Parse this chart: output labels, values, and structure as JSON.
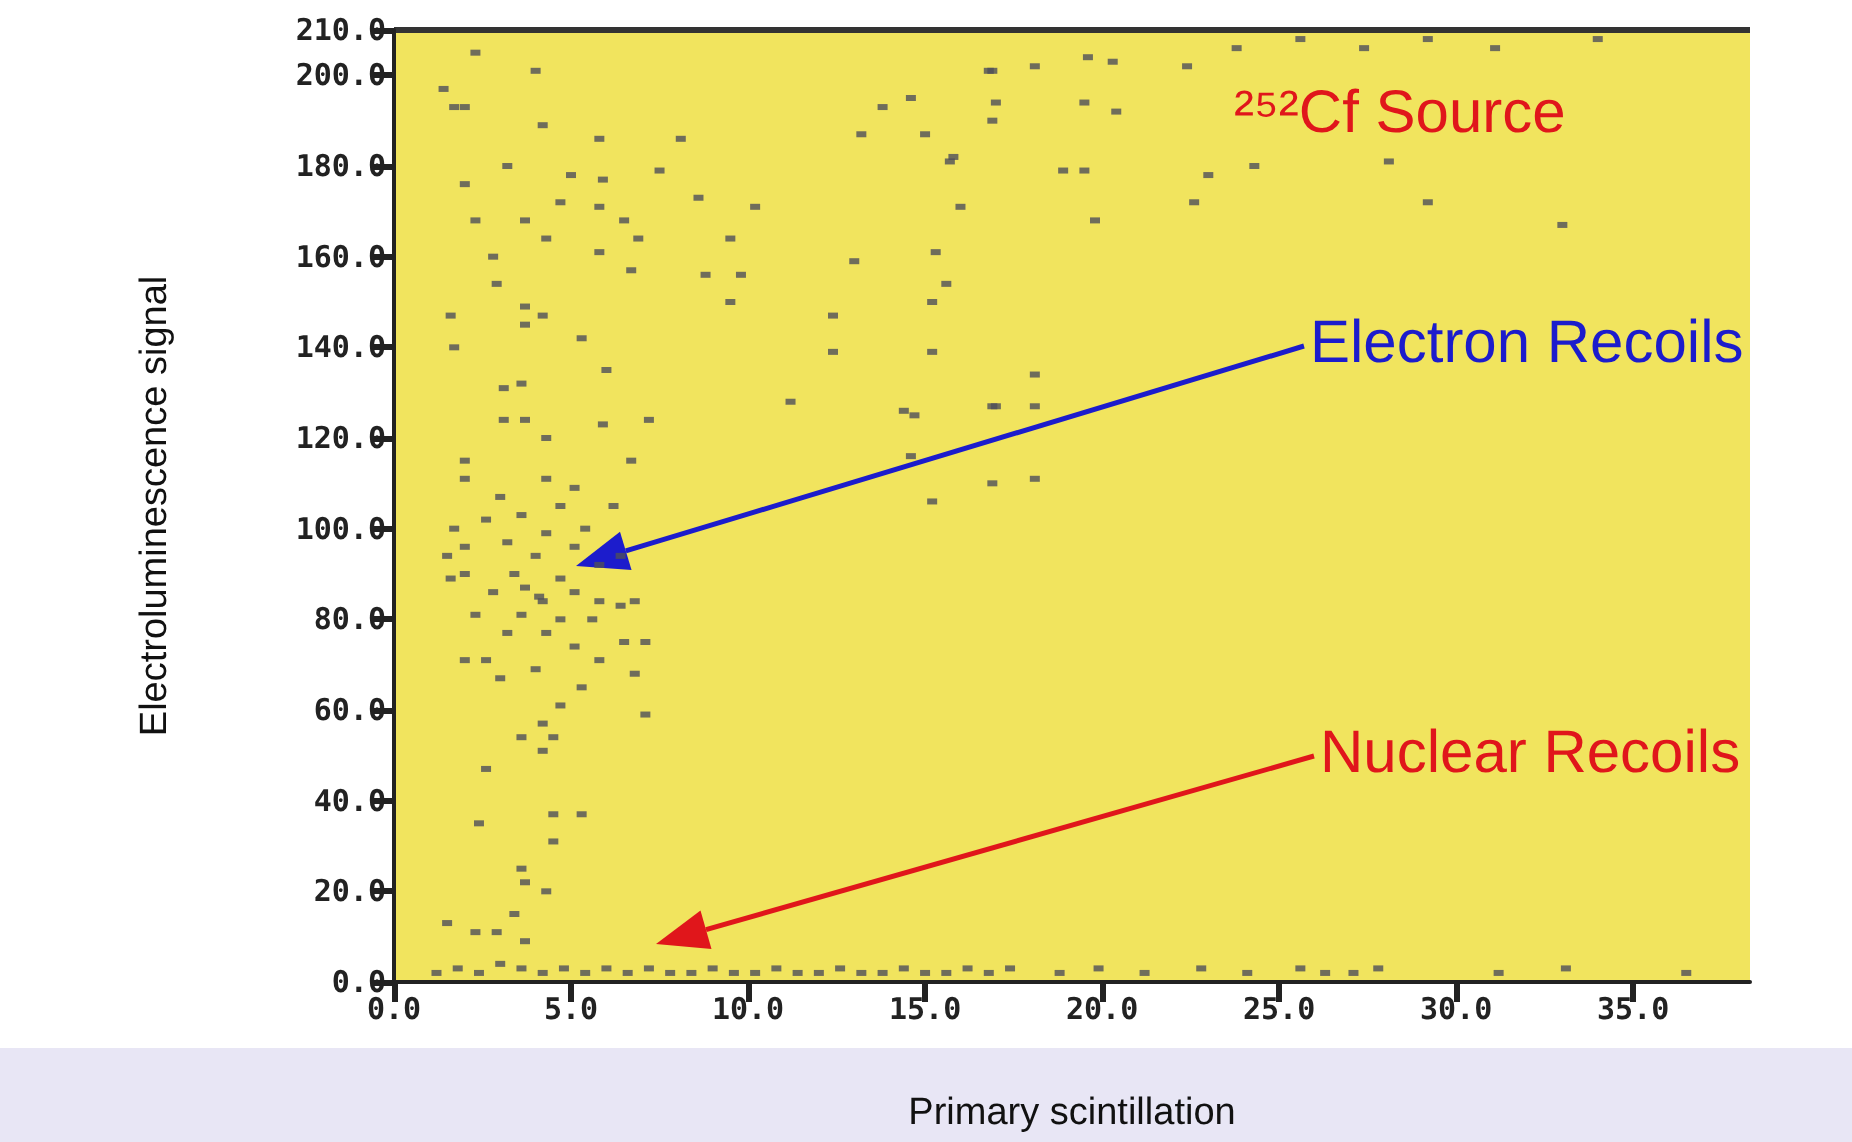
{
  "chart_data": {
    "type": "scatter",
    "xlabel": "Primary scintillation",
    "ylabel": "Electroluminescence signal",
    "annotations": [
      "²⁵²Cf Source",
      "Electron Recoils",
      "Nuclear Recoils"
    ],
    "xlim": [
      0,
      38.3
    ],
    "ylim": [
      0,
      210
    ],
    "xticks": [
      {
        "value": 0,
        "label": "0.0"
      },
      {
        "value": 5,
        "label": "5.0"
      },
      {
        "value": 10,
        "label": "10.0"
      },
      {
        "value": 15,
        "label": "15.0"
      },
      {
        "value": 20,
        "label": "20.0"
      },
      {
        "value": 25,
        "label": "25.0"
      },
      {
        "value": 30,
        "label": "30.0"
      },
      {
        "value": 35,
        "label": "35.0"
      }
    ],
    "yticks": [
      {
        "value": 0,
        "label": "0.0"
      },
      {
        "value": 20,
        "label": "20.0"
      },
      {
        "value": 40,
        "label": "40.0"
      },
      {
        "value": 60,
        "label": "60.0"
      },
      {
        "value": 80,
        "label": "80.0"
      },
      {
        "value": 100,
        "label": "100.0"
      },
      {
        "value": 120,
        "label": "120.0"
      },
      {
        "value": 140,
        "label": "140.0"
      },
      {
        "value": 160,
        "label": "160.0"
      },
      {
        "value": 180,
        "label": "180.0"
      },
      {
        "value": 200,
        "label": "200.0"
      },
      {
        "value": 210,
        "label": "210.0"
      }
    ],
    "grid": false,
    "marker": "square",
    "series": [
      {
        "color": "#4f4f5a",
        "x": [
          2.3,
          4.0,
          1.4,
          1.7,
          2.0,
          4.2,
          5.8,
          8.1,
          13.2,
          15.0,
          14.6,
          13.8,
          16.9,
          15.8,
          3.2,
          5.0,
          5.9,
          2.0,
          7.5,
          8.6,
          4.7,
          5.8,
          10.2,
          3.7,
          2.3,
          6.5,
          9.5,
          4.3,
          6.9,
          2.8,
          5.8,
          13.0,
          8.8,
          6.7,
          9.8,
          15.3,
          2.9,
          9.5,
          3.7,
          1.6,
          4.2,
          3.7,
          5.3,
          12.4,
          1.7,
          12.4,
          6.0,
          11.2,
          3.1,
          3.6,
          7.2,
          14.7,
          3.7,
          3.1,
          5.9,
          16.9,
          4.3,
          6.7,
          2.0,
          16.8,
          18.1,
          19.6,
          20.3,
          22.4,
          23.8,
          25.6,
          27.4,
          29.2,
          31.1,
          34.0,
          17.0,
          19.5,
          20.4,
          16.9,
          15.7,
          19.5,
          18.9,
          23.0,
          24.3,
          28.1,
          22.6,
          29.2,
          16.0,
          19.8,
          33.0,
          15.6,
          15.2,
          15.2,
          17.0,
          18.1,
          14.4,
          18.1,
          14.6,
          18.1,
          15.2,
          16.9,
          1.7,
          2.0,
          2.6,
          3.2,
          3.6,
          4.0,
          4.3,
          4.7,
          5.1,
          5.4,
          3.4,
          3.7,
          4.2,
          4.7,
          5.1,
          5.8,
          6.4,
          2.8,
          2.0,
          2.3,
          3.2,
          4.3,
          5.1,
          5.8,
          6.5,
          7.1,
          6.8,
          5.3,
          3.0,
          2.6,
          4.0,
          2.0,
          1.5,
          6.2,
          6.4,
          6.8,
          5.8,
          4.3,
          3.0,
          2.0,
          5.1,
          4.1,
          3.6,
          4.7,
          5.6,
          1.6,
          4.7,
          4.2,
          4.5,
          4.2,
          2.6,
          7.1,
          3.6,
          4.5,
          5.3,
          2.4,
          4.5,
          3.6,
          3.7,
          4.3,
          3.4,
          1.5,
          2.3,
          2.9,
          3.7,
          1.2,
          1.8,
          2.4,
          3.0,
          3.6,
          4.2,
          4.8,
          5.4,
          6.0,
          6.6,
          7.2,
          7.8,
          8.4,
          9.0,
          9.6,
          10.2,
          10.8,
          11.4,
          12.0,
          12.6,
          13.2,
          13.8,
          14.4,
          15.0,
          15.6,
          16.2,
          16.8,
          17.4,
          18.8,
          19.9,
          21.2,
          22.8,
          24.1,
          25.6,
          26.3,
          27.1,
          27.8,
          31.2,
          33.1,
          36.5
        ],
        "values": [
          205,
          201,
          197,
          193,
          193,
          189,
          186,
          186,
          187,
          187,
          195,
          193,
          201,
          182,
          180,
          178,
          177,
          176,
          179,
          173,
          172,
          171,
          171,
          168,
          168,
          168,
          164,
          164,
          164,
          160,
          161,
          159,
          156,
          157,
          156,
          161,
          154,
          150,
          149,
          147,
          147,
          145,
          142,
          147,
          140,
          139,
          135,
          128,
          131,
          132,
          124,
          125,
          124,
          124,
          123,
          127,
          120,
          115,
          115,
          201,
          202,
          204,
          203,
          202,
          206,
          208,
          206,
          208,
          206,
          208,
          194,
          194,
          192,
          190,
          181,
          179,
          179,
          178,
          180,
          181,
          172,
          172,
          171,
          168,
          167,
          154,
          150,
          139,
          127,
          127,
          126,
          134,
          116,
          111,
          106,
          110,
          100,
          96,
          102,
          97,
          103,
          94,
          99,
          105,
          96,
          100,
          90,
          87,
          84,
          89,
          86,
          84,
          83,
          86,
          90,
          81,
          77,
          77,
          74,
          71,
          75,
          75,
          68,
          65,
          67,
          71,
          69,
          71,
          94,
          105,
          94,
          84,
          92,
          111,
          107,
          111,
          109,
          85,
          81,
          80,
          80,
          89,
          61,
          57,
          54,
          51,
          47,
          59,
          54,
          37,
          37,
          35,
          31,
          25,
          22,
          20,
          15,
          13,
          11,
          11,
          9,
          2,
          3,
          2,
          4,
          3,
          2,
          3,
          2,
          3,
          2,
          3,
          2,
          2,
          3,
          2,
          2,
          3,
          2,
          2,
          3,
          2,
          2,
          3,
          2,
          2,
          3,
          2,
          3,
          2,
          3,
          2,
          3,
          2,
          3,
          2,
          2,
          3,
          2,
          3,
          2
        ]
      }
    ]
  }
}
